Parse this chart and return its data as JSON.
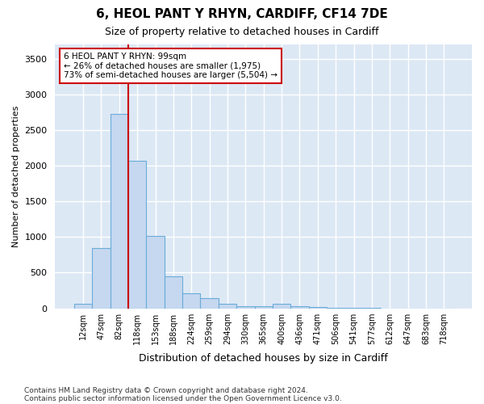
{
  "title": "6, HEOL PANT Y RHYN, CARDIFF, CF14 7DE",
  "subtitle": "Size of property relative to detached houses in Cardiff",
  "xlabel": "Distribution of detached houses by size in Cardiff",
  "ylabel": "Number of detached properties",
  "categories": [
    "12sqm",
    "47sqm",
    "82sqm",
    "118sqm",
    "153sqm",
    "188sqm",
    "224sqm",
    "259sqm",
    "294sqm",
    "330sqm",
    "365sqm",
    "400sqm",
    "436sqm",
    "471sqm",
    "506sqm",
    "541sqm",
    "577sqm",
    "612sqm",
    "647sqm",
    "683sqm",
    "718sqm"
  ],
  "values": [
    60,
    850,
    2720,
    2070,
    1020,
    450,
    210,
    145,
    65,
    30,
    30,
    65,
    30,
    20,
    5,
    2,
    1,
    0,
    0,
    0,
    0
  ],
  "bar_color": "#c5d8f0",
  "bar_edge_color": "#6aacd8",
  "red_line_color": "#cc0000",
  "red_line_x": 3,
  "annotation_title": "6 HEOL PANT Y RHYN: 99sqm",
  "annotation_line1": "← 26% of detached houses are smaller (1,975)",
  "annotation_line2": "73% of semi-detached houses are larger (5,504) →",
  "annotation_box_color": "#ffffff",
  "annotation_box_edge": "#cc0000",
  "ylim": [
    0,
    3700
  ],
  "yticks": [
    0,
    500,
    1000,
    1500,
    2000,
    2500,
    3000,
    3500
  ],
  "footnote1": "Contains HM Land Registry data © Crown copyright and database right 2024.",
  "footnote2": "Contains public sector information licensed under the Open Government Licence v3.0.",
  "fig_bg_color": "#ffffff",
  "plot_bg_color": "#dde8f5"
}
